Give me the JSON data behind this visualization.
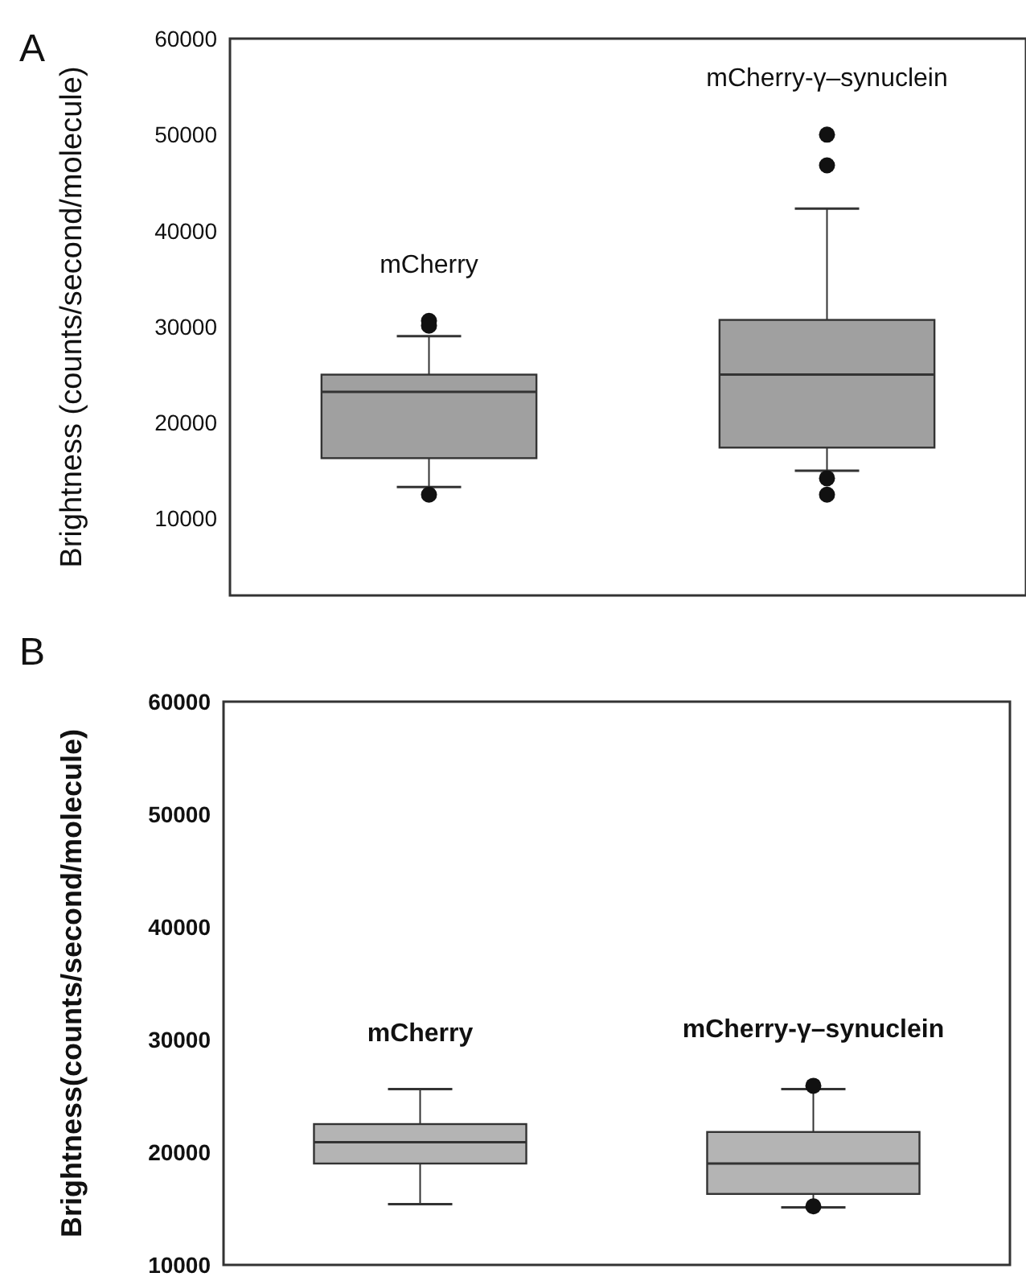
{
  "chart_data": [
    {
      "type": "box",
      "title": "A",
      "ylabel": "Brightness (counts/second/molecule)",
      "categories": [
        "mCherry",
        "mCherry-γ–synuclein"
      ],
      "color": "#a0a0a0",
      "tick_labels": "y",
      "ylim": [
        2000,
        60000
      ],
      "yticks": [
        10000,
        20000,
        30000,
        40000,
        50000,
        60000
      ],
      "boxes": [
        {
          "low": 13300,
          "q1": 16300,
          "median": 23200,
          "q3": 25000,
          "high": 29000,
          "outliers": [
            30600,
            30100,
            12500
          ]
        },
        {
          "low": 15000,
          "q1": 17400,
          "median": 25000,
          "q3": 30700,
          "high": 42300,
          "outliers": [
            50000,
            46800,
            14200,
            12500
          ]
        }
      ]
    },
    {
      "type": "box",
      "title": "B",
      "ylabel": "Brightness(counts/second/molecule)",
      "categories": [
        "mCherry",
        "mCherry-γ–synuclein"
      ],
      "color": "#b4b4b4",
      "tick_labels": "y",
      "ylim": [
        10000,
        60000
      ],
      "yticks": [
        10000,
        20000,
        30000,
        40000,
        50000,
        60000
      ],
      "boxes": [
        {
          "low": 15400,
          "q1": 19000,
          "median": 20900,
          "q3": 22500,
          "high": 25600
        },
        {
          "low": 15100,
          "q1": 16300,
          "median": 19000,
          "q3": 21800,
          "high": 25600,
          "outliers": [
            25900,
            15200
          ]
        }
      ]
    }
  ]
}
